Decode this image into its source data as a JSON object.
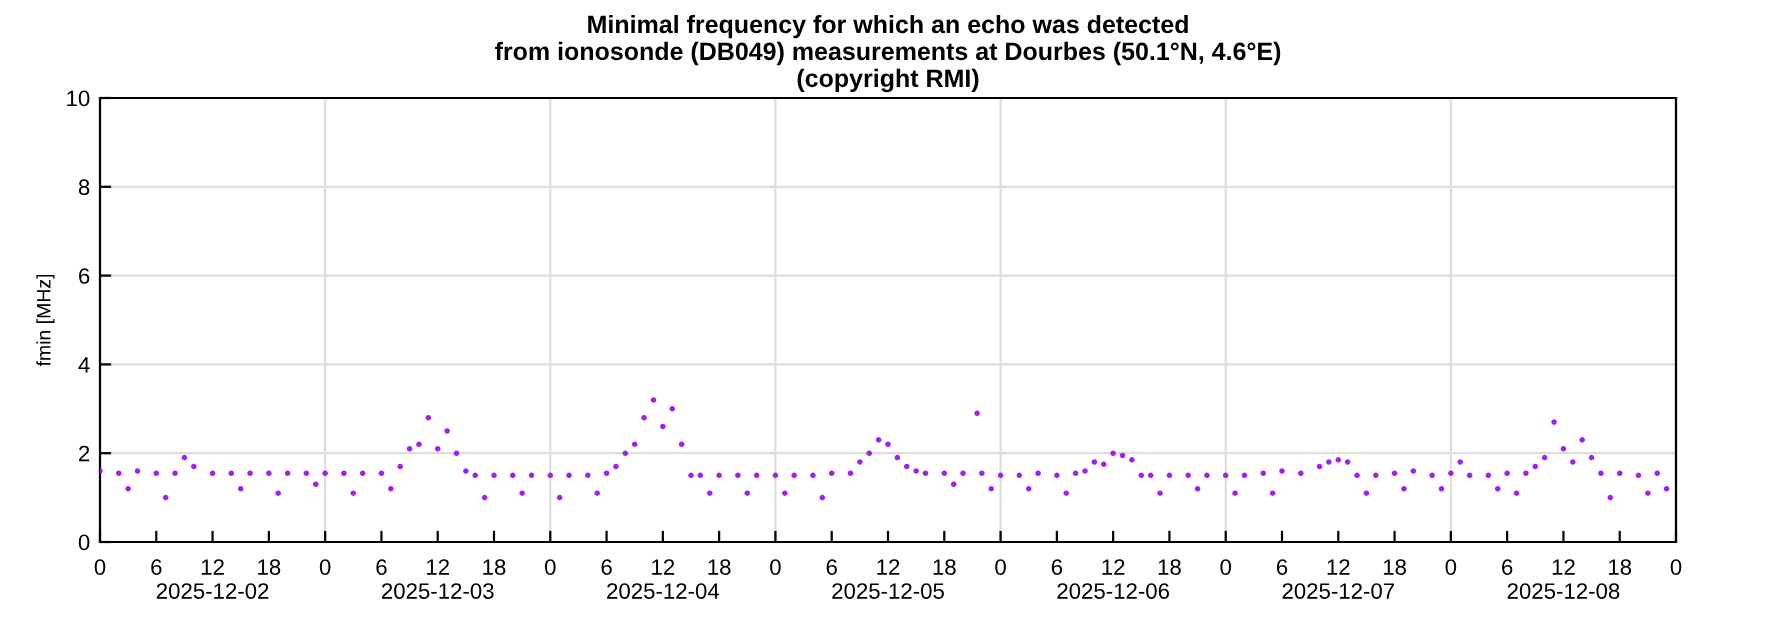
{
  "chart_data": {
    "type": "scatter",
    "title": "Minimal frequency for which an echo was detected\nfrom ionosonde (DB049) measurements at Dourbes (50.1°N, 4.6°E)\n(copyright RMI)",
    "ylabel": "fmin [MHz]",
    "xlim": [
      "2025-12-02T00:00",
      "2025-12-09T00:00"
    ],
    "xticks": [
      {
        "value": "2025-12-02T00:00",
        "label": "0"
      },
      {
        "value": "2025-12-02T06:00",
        "label": "6"
      },
      {
        "value": "2025-12-02T12:00",
        "label": "12\n2025-12-02"
      },
      {
        "value": "2025-12-02T18:00",
        "label": "18"
      },
      {
        "value": "2025-12-03T00:00",
        "label": "0"
      },
      {
        "value": "2025-12-03T06:00",
        "label": "6"
      },
      {
        "value": "2025-12-03T12:00",
        "label": "12\n2025-12-03"
      },
      {
        "value": "2025-12-03T18:00",
        "label": "18"
      },
      {
        "value": "2025-12-04T00:00",
        "label": "0"
      },
      {
        "value": "2025-12-04T06:00",
        "label": "6"
      },
      {
        "value": "2025-12-04T12:00",
        "label": "12\n2025-12-04"
      },
      {
        "value": "2025-12-04T18:00",
        "label": "18"
      },
      {
        "value": "2025-12-05T00:00",
        "label": "0"
      },
      {
        "value": "2025-12-05T06:00",
        "label": "6"
      },
      {
        "value": "2025-12-05T12:00",
        "label": "12\n2025-12-05"
      },
      {
        "value": "2025-12-05T18:00",
        "label": "18"
      },
      {
        "value": "2025-12-06T00:00",
        "label": "0"
      },
      {
        "value": "2025-12-06T06:00",
        "label": "6"
      },
      {
        "value": "2025-12-06T12:00",
        "label": "12\n2025-12-06"
      },
      {
        "value": "2025-12-06T18:00",
        "label": "18"
      },
      {
        "value": "2025-12-07T00:00",
        "label": "0"
      },
      {
        "value": "2025-12-07T06:00",
        "label": "6"
      },
      {
        "value": "2025-12-07T12:00",
        "label": "12\n2025-12-07"
      },
      {
        "value": "2025-12-07T18:00",
        "label": "18"
      },
      {
        "value": "2025-12-08T00:00",
        "label": "0"
      },
      {
        "value": "2025-12-08T06:00",
        "label": "6"
      },
      {
        "value": "2025-12-08T12:00",
        "label": "12\n2025-12-08"
      },
      {
        "value": "2025-12-08T18:00",
        "label": "18"
      },
      {
        "value": "2025-12-09T00:00",
        "label": "0"
      }
    ],
    "ylim": [
      0,
      10
    ],
    "yticks": [
      0,
      2,
      4,
      6,
      8,
      10
    ],
    "grid": true,
    "marker": "circle",
    "series": [
      {
        "color": "#a020f0",
        "x": [
          "2025-12-02T00:00",
          "2025-12-02T02:00",
          "2025-12-02T03:00",
          "2025-12-02T04:00",
          "2025-12-02T06:00",
          "2025-12-02T07:00",
          "2025-12-02T08:00",
          "2025-12-02T09:00",
          "2025-12-02T10:00",
          "2025-12-02T12:00",
          "2025-12-02T14:00",
          "2025-12-02T15:00",
          "2025-12-02T16:00",
          "2025-12-02T18:00",
          "2025-12-02T19:00",
          "2025-12-02T20:00",
          "2025-12-02T22:00",
          "2025-12-02T23:00",
          "2025-12-03T00:00",
          "2025-12-03T02:00",
          "2025-12-03T03:00",
          "2025-12-03T04:00",
          "2025-12-03T06:00",
          "2025-12-03T07:00",
          "2025-12-03T08:00",
          "2025-12-03T09:00",
          "2025-12-03T10:00",
          "2025-12-03T11:00",
          "2025-12-03T12:00",
          "2025-12-03T13:00",
          "2025-12-03T14:00",
          "2025-12-03T15:00",
          "2025-12-03T16:00",
          "2025-12-03T17:00",
          "2025-12-03T18:00",
          "2025-12-03T20:00",
          "2025-12-03T21:00",
          "2025-12-03T22:00",
          "2025-12-04T00:00",
          "2025-12-04T01:00",
          "2025-12-04T02:00",
          "2025-12-04T04:00",
          "2025-12-04T05:00",
          "2025-12-04T06:00",
          "2025-12-04T07:00",
          "2025-12-04T08:00",
          "2025-12-04T09:00",
          "2025-12-04T10:00",
          "2025-12-04T11:00",
          "2025-12-04T12:00",
          "2025-12-04T13:00",
          "2025-12-04T14:00",
          "2025-12-04T15:00",
          "2025-12-04T16:00",
          "2025-12-04T17:00",
          "2025-12-04T18:00",
          "2025-12-04T20:00",
          "2025-12-04T21:00",
          "2025-12-04T22:00",
          "2025-12-05T00:00",
          "2025-12-05T01:00",
          "2025-12-05T02:00",
          "2025-12-05T04:00",
          "2025-12-05T05:00",
          "2025-12-05T06:00",
          "2025-12-05T08:00",
          "2025-12-05T09:00",
          "2025-12-05T10:00",
          "2025-12-05T11:00",
          "2025-12-05T12:00",
          "2025-12-05T13:00",
          "2025-12-05T14:00",
          "2025-12-05T15:00",
          "2025-12-05T16:00",
          "2025-12-05T18:00",
          "2025-12-05T19:00",
          "2025-12-05T20:00",
          "2025-12-05T21:30",
          "2025-12-05T22:00",
          "2025-12-05T23:00",
          "2025-12-06T00:00",
          "2025-12-06T02:00",
          "2025-12-06T03:00",
          "2025-12-06T04:00",
          "2025-12-06T06:00",
          "2025-12-06T07:00",
          "2025-12-06T08:00",
          "2025-12-06T09:00",
          "2025-12-06T10:00",
          "2025-12-06T11:00",
          "2025-12-06T12:00",
          "2025-12-06T13:00",
          "2025-12-06T14:00",
          "2025-12-06T15:00",
          "2025-12-06T16:00",
          "2025-12-06T17:00",
          "2025-12-06T18:00",
          "2025-12-06T20:00",
          "2025-12-06T21:00",
          "2025-12-06T22:00",
          "2025-12-07T00:00",
          "2025-12-07T01:00",
          "2025-12-07T02:00",
          "2025-12-07T04:00",
          "2025-12-07T05:00",
          "2025-12-07T06:00",
          "2025-12-07T08:00",
          "2025-12-07T10:00",
          "2025-12-07T11:00",
          "2025-12-07T12:00",
          "2025-12-07T13:00",
          "2025-12-07T14:00",
          "2025-12-07T15:00",
          "2025-12-07T16:00",
          "2025-12-07T18:00",
          "2025-12-07T19:00",
          "2025-12-07T20:00",
          "2025-12-07T22:00",
          "2025-12-07T23:00",
          "2025-12-08T00:00",
          "2025-12-08T01:00",
          "2025-12-08T02:00",
          "2025-12-08T04:00",
          "2025-12-08T05:00",
          "2025-12-08T06:00",
          "2025-12-08T07:00",
          "2025-12-08T08:00",
          "2025-12-08T09:00",
          "2025-12-08T10:00",
          "2025-12-08T11:00",
          "2025-12-08T12:00",
          "2025-12-08T13:00",
          "2025-12-08T14:00",
          "2025-12-08T15:00",
          "2025-12-08T16:00",
          "2025-12-08T17:00",
          "2025-12-08T18:00",
          "2025-12-08T20:00",
          "2025-12-08T21:00",
          "2025-12-08T22:00",
          "2025-12-08T23:00"
        ],
        "values": [
          1.6,
          1.55,
          1.2,
          1.6,
          1.55,
          1.0,
          1.55,
          1.9,
          1.7,
          1.55,
          1.55,
          1.2,
          1.55,
          1.55,
          1.1,
          1.55,
          1.55,
          1.3,
          1.55,
          1.55,
          1.1,
          1.55,
          1.55,
          1.2,
          1.7,
          2.1,
          2.2,
          2.8,
          2.1,
          2.5,
          2.0,
          1.6,
          1.5,
          1.0,
          1.5,
          1.5,
          1.1,
          1.5,
          1.5,
          1.0,
          1.5,
          1.5,
          1.1,
          1.55,
          1.7,
          2.0,
          2.2,
          2.8,
          3.2,
          2.6,
          3.0,
          2.2,
          1.5,
          1.5,
          1.1,
          1.5,
          1.5,
          1.1,
          1.5,
          1.5,
          1.1,
          1.5,
          1.5,
          1.0,
          1.55,
          1.55,
          1.8,
          2.0,
          2.3,
          2.2,
          1.9,
          1.7,
          1.6,
          1.55,
          1.55,
          1.3,
          1.55,
          2.9,
          1.55,
          1.2,
          1.5,
          1.5,
          1.2,
          1.55,
          1.5,
          1.1,
          1.55,
          1.6,
          1.8,
          1.75,
          2.0,
          1.95,
          1.85,
          1.5,
          1.5,
          1.1,
          1.5,
          1.5,
          1.2,
          1.5,
          1.5,
          1.1,
          1.5,
          1.55,
          1.1,
          1.6,
          1.55,
          1.7,
          1.8,
          1.85,
          1.8,
          1.5,
          1.1,
          1.5,
          1.55,
          1.2,
          1.6,
          1.5,
          1.2,
          1.55,
          1.8,
          1.5,
          1.5,
          1.2,
          1.55,
          1.1,
          1.55,
          1.7,
          1.9,
          2.7,
          2.1,
          1.8,
          2.3,
          1.9,
          1.55,
          1.0,
          1.55,
          1.5,
          1.1,
          1.55,
          1.2
        ]
      }
    ]
  }
}
